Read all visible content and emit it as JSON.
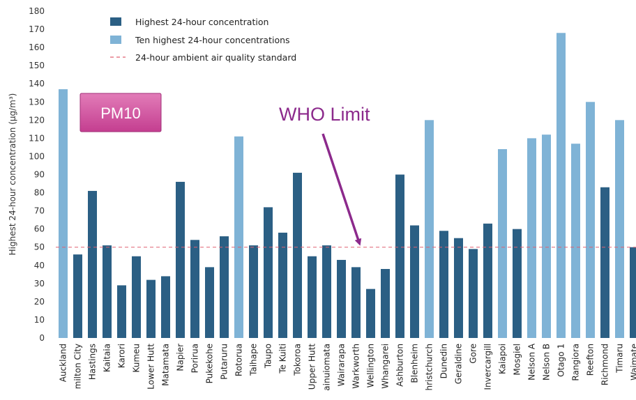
{
  "chart_data": {
    "type": "bar",
    "ylabel": "Highest 24-hour concentration (µg/m³)",
    "ylim": [
      0,
      180
    ],
    "yticks": [
      0,
      10,
      20,
      30,
      40,
      50,
      60,
      70,
      80,
      90,
      100,
      110,
      120,
      130,
      140,
      150,
      160,
      170,
      180
    ],
    "categories": [
      "Auckland",
      "milton City",
      "Hastings",
      "Kaitaia",
      "Karori",
      "Kumeu",
      "Lower Hutt",
      "Matamata",
      "Napier",
      "Porirua",
      "Pukekohe",
      "Putaruru",
      "Rotorua",
      "Taihape",
      "Taupo",
      "Te Kuiti",
      "Tokoroa",
      "Upper Hutt",
      "ainuiomata",
      "Wairarapa",
      "Warkworth",
      "Wellington",
      "Whangarei",
      "Ashburton",
      "Blenheim",
      "hristchurch",
      "Dunedin",
      "Geraldine",
      "Gore",
      "Invercargill",
      "Kaiapoi",
      "Mosgiel",
      "Nelson A",
      "Nelson B",
      "Otago 1",
      "Rangiora",
      "Reefton",
      "Richmond",
      "Timaru",
      "Waimate"
    ],
    "values": [
      137,
      46,
      81,
      51,
      29,
      45,
      32,
      34,
      86,
      54,
      39,
      56,
      111,
      51,
      72,
      58,
      91,
      45,
      51,
      43,
      39,
      27,
      38,
      90,
      62,
      120,
      59,
      55,
      49,
      63,
      104,
      60,
      110,
      112,
      168,
      107,
      130,
      83,
      120,
      50
    ],
    "series_type": [
      "ten",
      "highest",
      "highest",
      "highest",
      "highest",
      "highest",
      "highest",
      "highest",
      "highest",
      "highest",
      "highest",
      "highest",
      "ten",
      "highest",
      "highest",
      "highest",
      "highest",
      "highest",
      "highest",
      "highest",
      "highest",
      "highest",
      "highest",
      "highest",
      "highest",
      "ten",
      "highest",
      "highest",
      "highest",
      "highest",
      "ten",
      "highest",
      "ten",
      "ten",
      "ten",
      "ten",
      "ten",
      "highest",
      "ten",
      "highest"
    ],
    "legend": {
      "highest": "Highest 24-hour concentration",
      "ten": "Ten highest 24-hour concentrations",
      "standard": "24-hour ambient air quality standard"
    },
    "standard_value": 50,
    "legend_position": "top-left",
    "grid": false,
    "colors": {
      "highest": "#2b5f84",
      "ten": "#7fb3d6",
      "standard": "#e06070",
      "annotation": "#8c2a8c",
      "pm_box": "#cf4f9c"
    }
  },
  "annotations": {
    "pm_label": "PM10",
    "who_label": "WHO Limit"
  }
}
